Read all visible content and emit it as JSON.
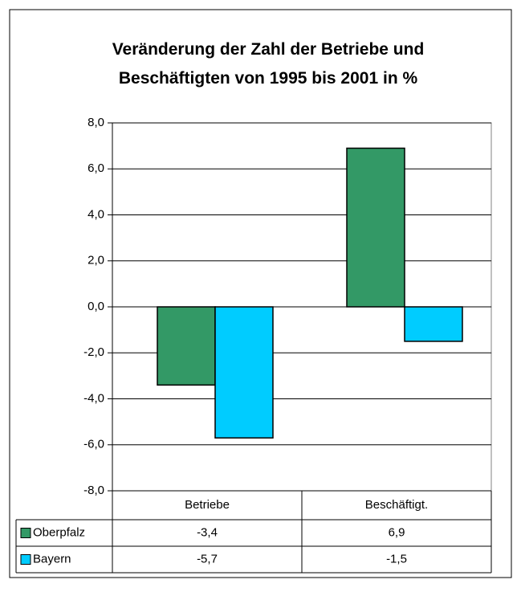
{
  "chart_data": {
    "type": "bar",
    "title": "Veränderung der Zahl der Betriebe und Beschäftigten von 1995 bis 2001 in %",
    "categories": [
      "Betriebe",
      "Beschäftigt."
    ],
    "series": [
      {
        "name": "Oberpfalz",
        "color": "#339966",
        "values": [
          -3.4,
          6.9
        ],
        "value_labels": [
          "-3,4",
          "6,9"
        ]
      },
      {
        "name": "Bayern",
        "color": "#00ccff",
        "values": [
          -5.7,
          -1.5
        ],
        "value_labels": [
          "-5,7",
          "-1,5"
        ]
      }
    ],
    "ylim": [
      -8,
      8
    ],
    "yticks": [
      {
        "value": -8,
        "label": "-8,0"
      },
      {
        "value": -6,
        "label": "-6,0"
      },
      {
        "value": -4,
        "label": "-4,0"
      },
      {
        "value": -2,
        "label": "-2,0"
      },
      {
        "value": 0,
        "label": "0,0"
      },
      {
        "value": 2,
        "label": "2,0"
      },
      {
        "value": 4,
        "label": "4,0"
      },
      {
        "value": 6,
        "label": "6,0"
      },
      {
        "value": 8,
        "label": "8,0"
      }
    ],
    "grid": true
  }
}
